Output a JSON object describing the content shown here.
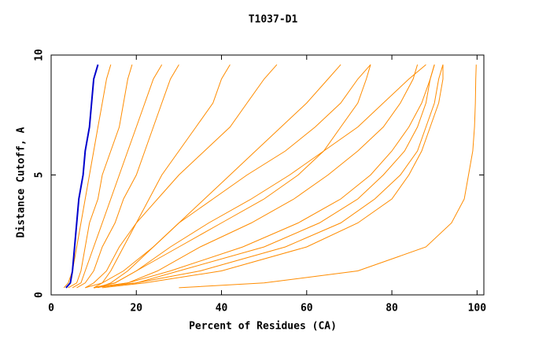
{
  "chart_data": {
    "type": "line",
    "title": "T1037-D1",
    "x_label": "Percent of Residues (CA)",
    "y_label": "Distance Cutoff, A",
    "xlim": [
      0,
      101.6
    ],
    "ylim": [
      0,
      10
    ],
    "xticks": [
      0,
      20,
      40,
      60,
      80,
      100
    ],
    "yticks": [
      0,
      5,
      10
    ],
    "y": [
      0.3,
      0.5,
      1,
      2,
      3,
      4,
      5,
      6,
      7,
      8,
      9,
      9.6
    ],
    "series": [
      {
        "color": "#ff8c00",
        "x": [
          3,
          4,
          5,
          6,
          7,
          8,
          9,
          10,
          11,
          12,
          13,
          14
        ]
      },
      {
        "color": "#ff8c00",
        "x": [
          4,
          6,
          7,
          8,
          9,
          11,
          12,
          14,
          16,
          17,
          18,
          19
        ]
      },
      {
        "color": "#ff8c00",
        "x": [
          5,
          7,
          8,
          10,
          12,
          14,
          16,
          18,
          20,
          22,
          24,
          26
        ]
      },
      {
        "color": "#ff8c00",
        "x": [
          6,
          8,
          10,
          12,
          15,
          17,
          20,
          22,
          24,
          26,
          28,
          30
        ]
      },
      {
        "color": "#ff8c00",
        "x": [
          10,
          12,
          14,
          17,
          20,
          23,
          26,
          30,
          34,
          38,
          40,
          42
        ]
      },
      {
        "color": "#ff8c00",
        "x": [
          8,
          10,
          13,
          16,
          20,
          25,
          30,
          36,
          42,
          46,
          50,
          53
        ]
      },
      {
        "color": "#ff8c00",
        "x": [
          10,
          15,
          20,
          30,
          40,
          50,
          58,
          64,
          68,
          72,
          74,
          75
        ]
      },
      {
        "color": "#ff8c00",
        "x": [
          10,
          18,
          25,
          35,
          47,
          57,
          65,
          72,
          78,
          82,
          85,
          86
        ]
      },
      {
        "color": "#ff8c00",
        "x": [
          10,
          18,
          28,
          45,
          58,
          68,
          75,
          80,
          84,
          87,
          89,
          90
        ]
      },
      {
        "color": "#ff8c00",
        "x": [
          10,
          20,
          30,
          50,
          63,
          72,
          78,
          83,
          86,
          88,
          89,
          90
        ]
      },
      {
        "color": "#ff8c00",
        "x": [
          10,
          20,
          35,
          55,
          68,
          76,
          82,
          86,
          88,
          90,
          91,
          92
        ]
      },
      {
        "color": "#ff8c00",
        "x": [
          12,
          22,
          40,
          60,
          72,
          80,
          84,
          87,
          89,
          91,
          92,
          92
        ]
      },
      {
        "color": "#ff8c00",
        "x": [
          10,
          15,
          20,
          28,
          37,
          47,
          56,
          64,
          72,
          78,
          84,
          88
        ]
      },
      {
        "color": "#ff8c00",
        "x": [
          8,
          12,
          17,
          24,
          30,
          36,
          42,
          48,
          54,
          60,
          65,
          68
        ]
      },
      {
        "color": "#ff8c00",
        "x": [
          30,
          50,
          72,
          88,
          94,
          97,
          98,
          99,
          99.4,
          99.6,
          99.7,
          99.8
        ]
      },
      {
        "color": "#ff8c00",
        "x": [
          11,
          14,
          18,
          24,
          30,
          38,
          46,
          55,
          62,
          68,
          72,
          75
        ]
      },
      {
        "color": "#0000cc",
        "x": [
          3.5,
          4.5,
          5,
          5.5,
          6,
          6.5,
          7.5,
          8,
          9,
          9.5,
          10,
          11
        ]
      }
    ]
  }
}
